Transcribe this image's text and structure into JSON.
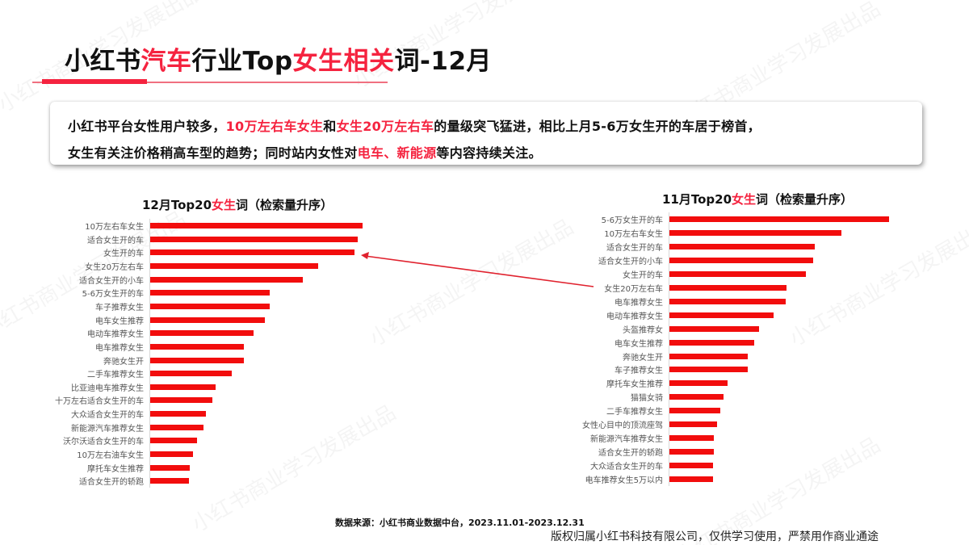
{
  "title": {
    "part1": "小红书",
    "part2": "汽车",
    "part3": "行业Top",
    "part4": "女生相关",
    "part5": "词-12月"
  },
  "summary": {
    "line1": {
      "t1": "小红书平台女性用户较多，",
      "h1": "10万左右车女生",
      "t2": "和",
      "h2": "女生20万左右车",
      "t3": "的量级突飞猛进，相比上月5-6万女生开的车居于榜首，"
    },
    "line2": {
      "t1": "女生有关注价格稍高车型的趋势；同时站内女性对",
      "h1": "电车、新能源",
      "t2": "等内容持续关注。"
    }
  },
  "colors": {
    "accent": "#f5233f",
    "bar": "#f20d0d"
  },
  "chart_data": [
    {
      "type": "bar",
      "orientation": "horizontal",
      "title": "12月Top20女生词（检索量升序）",
      "title_parts": {
        "a": "12月Top20",
        "b": "女生",
        "c": "词（检索量升序）"
      },
      "xlabel": "",
      "ylabel": "",
      "grid": false,
      "legend": null,
      "value_unit": "relative bar length (px, no axis shown)",
      "categories": [
        "10万左右车女生",
        "适合女生开的车",
        "女生开的车",
        "女生20万左右车",
        "适合女生开的小车",
        "5-6万女生开的车",
        "车子推荐女生",
        "电车女生推荐",
        "电动车推荐女生",
        "电车推荐女生",
        "奔驰女生开",
        "二手车推荐女生",
        "比亚迪电车推荐女生",
        "十万左右适合女生开的车",
        "大众适合女生开的车",
        "新能源汽车推荐女生",
        "沃尔沃适合女生开的车",
        "10万左右油车女生",
        "摩托车女生推荐",
        "适合女生开的轿跑"
      ],
      "values": [
        263,
        257,
        253,
        208,
        189,
        148,
        148,
        142,
        128,
        116,
        116,
        101,
        81,
        77,
        69,
        66,
        58,
        53,
        49,
        48
      ]
    },
    {
      "type": "bar",
      "orientation": "horizontal",
      "title": "11月Top20女生词（检索量升序）",
      "title_parts": {
        "a": "11月Top20",
        "b": "女生",
        "c": "词（检索量升序）"
      },
      "xlabel": "",
      "ylabel": "",
      "grid": false,
      "legend": null,
      "value_unit": "relative bar length (px, no axis shown)",
      "categories": [
        "5-6万女生开的车",
        "10万左右车女生",
        "适合女生开的车",
        "适合女生开的小车",
        "女生开的车",
        "女生20万左右车",
        "电车推荐女生",
        "电动车推荐女生",
        "头盔推荐女",
        "电车女生推荐",
        "奔驰女生开",
        "车子推荐女生",
        "摩托车女生推荐",
        "猫猫女骑",
        "二手车推荐女生",
        "女性心目中的顶流座驾",
        "新能源汽车推荐女生",
        "适合女生开的轿跑",
        "大众适合女生开的车",
        "电车推荐女生5万以内"
      ],
      "values": [
        272,
        213,
        180,
        178,
        169,
        145,
        144,
        129,
        111,
        105,
        97,
        97,
        72,
        67,
        63,
        59,
        55,
        55,
        54,
        54
      ]
    }
  ],
  "annotation": {
    "arrow_from": "11月: 女生20万左右车",
    "arrow_to": "12月: 女生开的车 / 女生20万左右车 row"
  },
  "footer": {
    "source": "数据来源：小红书商业数据中台，2023.11.01-2023.12.31",
    "copyright": "版权归属小红书科技有限公司，仅供学习使用，严禁用作商业通途"
  },
  "watermark": "小红书商业学习发展出品"
}
